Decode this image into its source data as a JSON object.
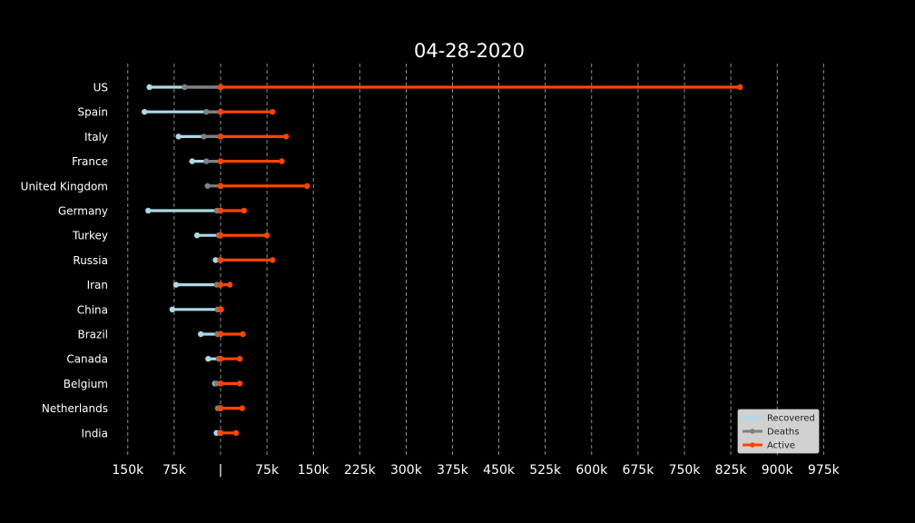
{
  "chart_data": {
    "type": "dumbbell",
    "title": "04-28-2020",
    "x_axis": {
      "ticks": [
        -150000,
        -75000,
        0,
        75000,
        150000,
        225000,
        300000,
        375000,
        450000,
        525000,
        600000,
        675000,
        750000,
        825000,
        900000,
        975000
      ],
      "tick_labels": [
        "150k",
        "75k",
        "|",
        "75k",
        "150k",
        "225k",
        "300k",
        "375k",
        "450k",
        "525k",
        "600k",
        "675k",
        "750k",
        "825k",
        "900k",
        "975k"
      ],
      "grid": true
    },
    "categories": [
      "US",
      "Spain",
      "Italy",
      "France",
      "United Kingdom",
      "Germany",
      "Turkey",
      "Russia",
      "Iran",
      "China",
      "Brazil",
      "Canada",
      "Belgium",
      "Netherlands",
      "India"
    ],
    "series": [
      {
        "name": "Recovered",
        "direction": "left",
        "color": "#add8e6",
        "values": [
          115000,
          123000,
          68000,
          46000,
          0,
          117000,
          38000,
          8000,
          72000,
          78000,
          32000,
          20000,
          9000,
          0,
          6500
        ]
      },
      {
        "name": "Deaths",
        "direction": "left",
        "color": "#808080",
        "values": [
          58000,
          23000,
          27000,
          23000,
          21000,
          6000,
          3000,
          1000,
          6000,
          4600,
          5000,
          3000,
          7000,
          4500,
          1000
        ]
      },
      {
        "name": "Active",
        "direction": "right",
        "color": "#ff4500",
        "values": [
          840000,
          84000,
          106000,
          99000,
          140000,
          38000,
          75000,
          84000,
          15000,
          1000,
          36000,
          31000,
          31000,
          35000,
          25000
        ]
      }
    ],
    "legend": {
      "position": "bottom-right",
      "entries": [
        "Recovered",
        "Deaths",
        "Active"
      ]
    }
  }
}
